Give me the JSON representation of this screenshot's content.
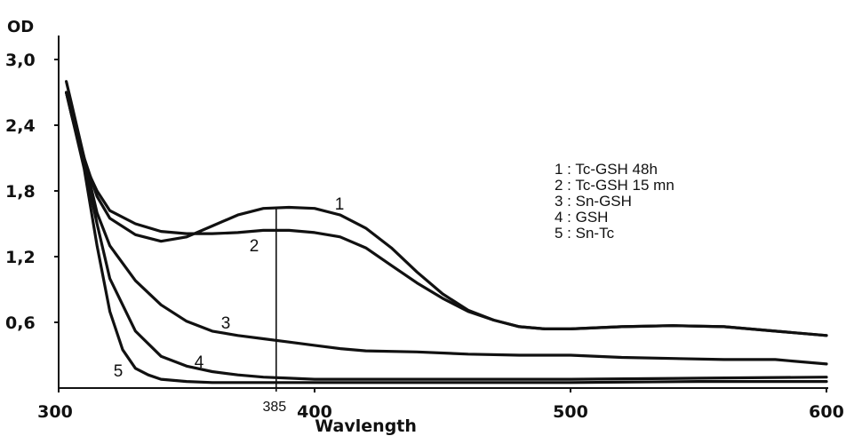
{
  "chart_data": {
    "type": "line",
    "xlabel": "Wavlength",
    "ylabel": "OD",
    "xlim": [
      300,
      600
    ],
    "ylim": [
      0,
      3.0
    ],
    "x_ticks": [
      "300",
      "400",
      "500",
      "600"
    ],
    "y_ticks": [
      "0,6",
      "1,2",
      "1,8",
      "2,4",
      "3,0"
    ],
    "annotation": {
      "x": 385,
      "label": "385"
    },
    "legend": [
      "1 : Tc-GSH 48h",
      "2 : Tc-GSH 15 mn",
      "3 : Sn-GSH",
      "4 : GSH",
      "5 : Sn-Tc"
    ],
    "legend_position": "right",
    "series": [
      {
        "name": "1",
        "x": [
          303,
          305,
          310,
          315,
          320,
          330,
          340,
          350,
          360,
          370,
          380,
          390,
          400,
          410,
          420,
          430,
          440,
          450,
          460,
          470,
          480,
          490,
          500,
          520,
          540,
          560,
          580,
          600
        ],
        "y": [
          2.8,
          2.6,
          2.1,
          1.75,
          1.55,
          1.4,
          1.34,
          1.38,
          1.48,
          1.58,
          1.64,
          1.65,
          1.64,
          1.58,
          1.46,
          1.28,
          1.06,
          0.86,
          0.71,
          0.62,
          0.56,
          0.54,
          0.54,
          0.56,
          0.57,
          0.56,
          0.52,
          0.48
        ]
      },
      {
        "name": "2",
        "x": [
          303,
          305,
          310,
          315,
          320,
          330,
          340,
          350,
          360,
          370,
          380,
          390,
          400,
          410,
          420,
          430,
          440,
          450,
          460,
          470,
          480,
          490,
          500,
          520,
          540,
          560,
          580,
          600
        ],
        "y": [
          2.7,
          2.5,
          2.05,
          1.8,
          1.62,
          1.5,
          1.43,
          1.41,
          1.41,
          1.42,
          1.44,
          1.44,
          1.42,
          1.38,
          1.28,
          1.12,
          0.96,
          0.82,
          0.7,
          0.62,
          0.56,
          0.54,
          0.54,
          0.56,
          0.57,
          0.56,
          0.52,
          0.48
        ]
      },
      {
        "name": "3",
        "x": [
          303,
          305,
          310,
          315,
          320,
          330,
          340,
          350,
          360,
          370,
          380,
          390,
          400,
          410,
          420,
          440,
          460,
          480,
          500,
          520,
          540,
          560,
          580,
          600
        ],
        "y": [
          2.7,
          2.55,
          2.1,
          1.6,
          1.3,
          0.98,
          0.76,
          0.61,
          0.52,
          0.48,
          0.45,
          0.42,
          0.39,
          0.36,
          0.34,
          0.33,
          0.31,
          0.3,
          0.3,
          0.28,
          0.27,
          0.26,
          0.26,
          0.22
        ]
      },
      {
        "name": "4",
        "x": [
          303,
          305,
          310,
          315,
          320,
          330,
          340,
          350,
          360,
          370,
          380,
          390,
          400,
          420,
          450,
          480,
          500,
          550,
          600
        ],
        "y": [
          2.7,
          2.5,
          2.05,
          1.5,
          1.0,
          0.52,
          0.29,
          0.2,
          0.15,
          0.12,
          0.1,
          0.09,
          0.08,
          0.08,
          0.08,
          0.08,
          0.08,
          0.09,
          0.1
        ]
      },
      {
        "name": "5",
        "x": [
          303,
          305,
          310,
          315,
          320,
          325,
          330,
          335,
          340,
          350,
          360,
          380,
          400,
          450,
          500,
          550,
          600
        ],
        "y": [
          2.7,
          2.5,
          2.0,
          1.3,
          0.7,
          0.35,
          0.18,
          0.12,
          0.08,
          0.06,
          0.05,
          0.05,
          0.05,
          0.05,
          0.05,
          0.06,
          0.06
        ]
      }
    ]
  }
}
